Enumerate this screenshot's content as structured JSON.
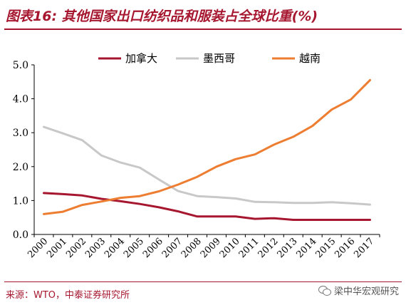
{
  "header": {
    "title": "图表16: 其他国家出口纺织品和服装占全球比重(%)"
  },
  "footer": {
    "source": "来源：WTO，中泰证券研究所",
    "watermark": "梁中华宏观研究",
    "watermark_icon": "wechat-icon"
  },
  "chart_data": {
    "type": "line",
    "title": "",
    "xlabel": "",
    "ylabel": "",
    "x": [
      "2000",
      "2001",
      "2002",
      "2003",
      "2004",
      "2005",
      "2006",
      "2007",
      "2008",
      "2009",
      "2010",
      "2011",
      "2012",
      "2013",
      "2014",
      "2015",
      "2016",
      "2017"
    ],
    "ylim": [
      0,
      5
    ],
    "yticks": [
      "0.0",
      "1.0",
      "2.0",
      "3.0",
      "4.0",
      "5.0"
    ],
    "grid": false,
    "legend_position": "top-center",
    "series": [
      {
        "name": "加拿大",
        "color": "#a6172f",
        "values": [
          1.22,
          1.19,
          1.15,
          1.05,
          0.98,
          0.9,
          0.8,
          0.68,
          0.53,
          0.53,
          0.53,
          0.46,
          0.48,
          0.43,
          0.43,
          0.43,
          0.43,
          0.43
        ]
      },
      {
        "name": "墨西哥",
        "color": "#c8c8c8",
        "values": [
          3.17,
          2.98,
          2.78,
          2.33,
          2.12,
          1.97,
          1.62,
          1.28,
          1.13,
          1.1,
          1.06,
          0.96,
          0.95,
          0.93,
          0.93,
          0.95,
          0.92,
          0.88
        ]
      },
      {
        "name": "越南",
        "color": "#ed7d31",
        "values": [
          0.6,
          0.67,
          0.87,
          0.97,
          1.08,
          1.13,
          1.27,
          1.47,
          1.7,
          2.0,
          2.22,
          2.36,
          2.65,
          2.88,
          3.2,
          3.68,
          3.98,
          4.55
        ]
      }
    ]
  }
}
